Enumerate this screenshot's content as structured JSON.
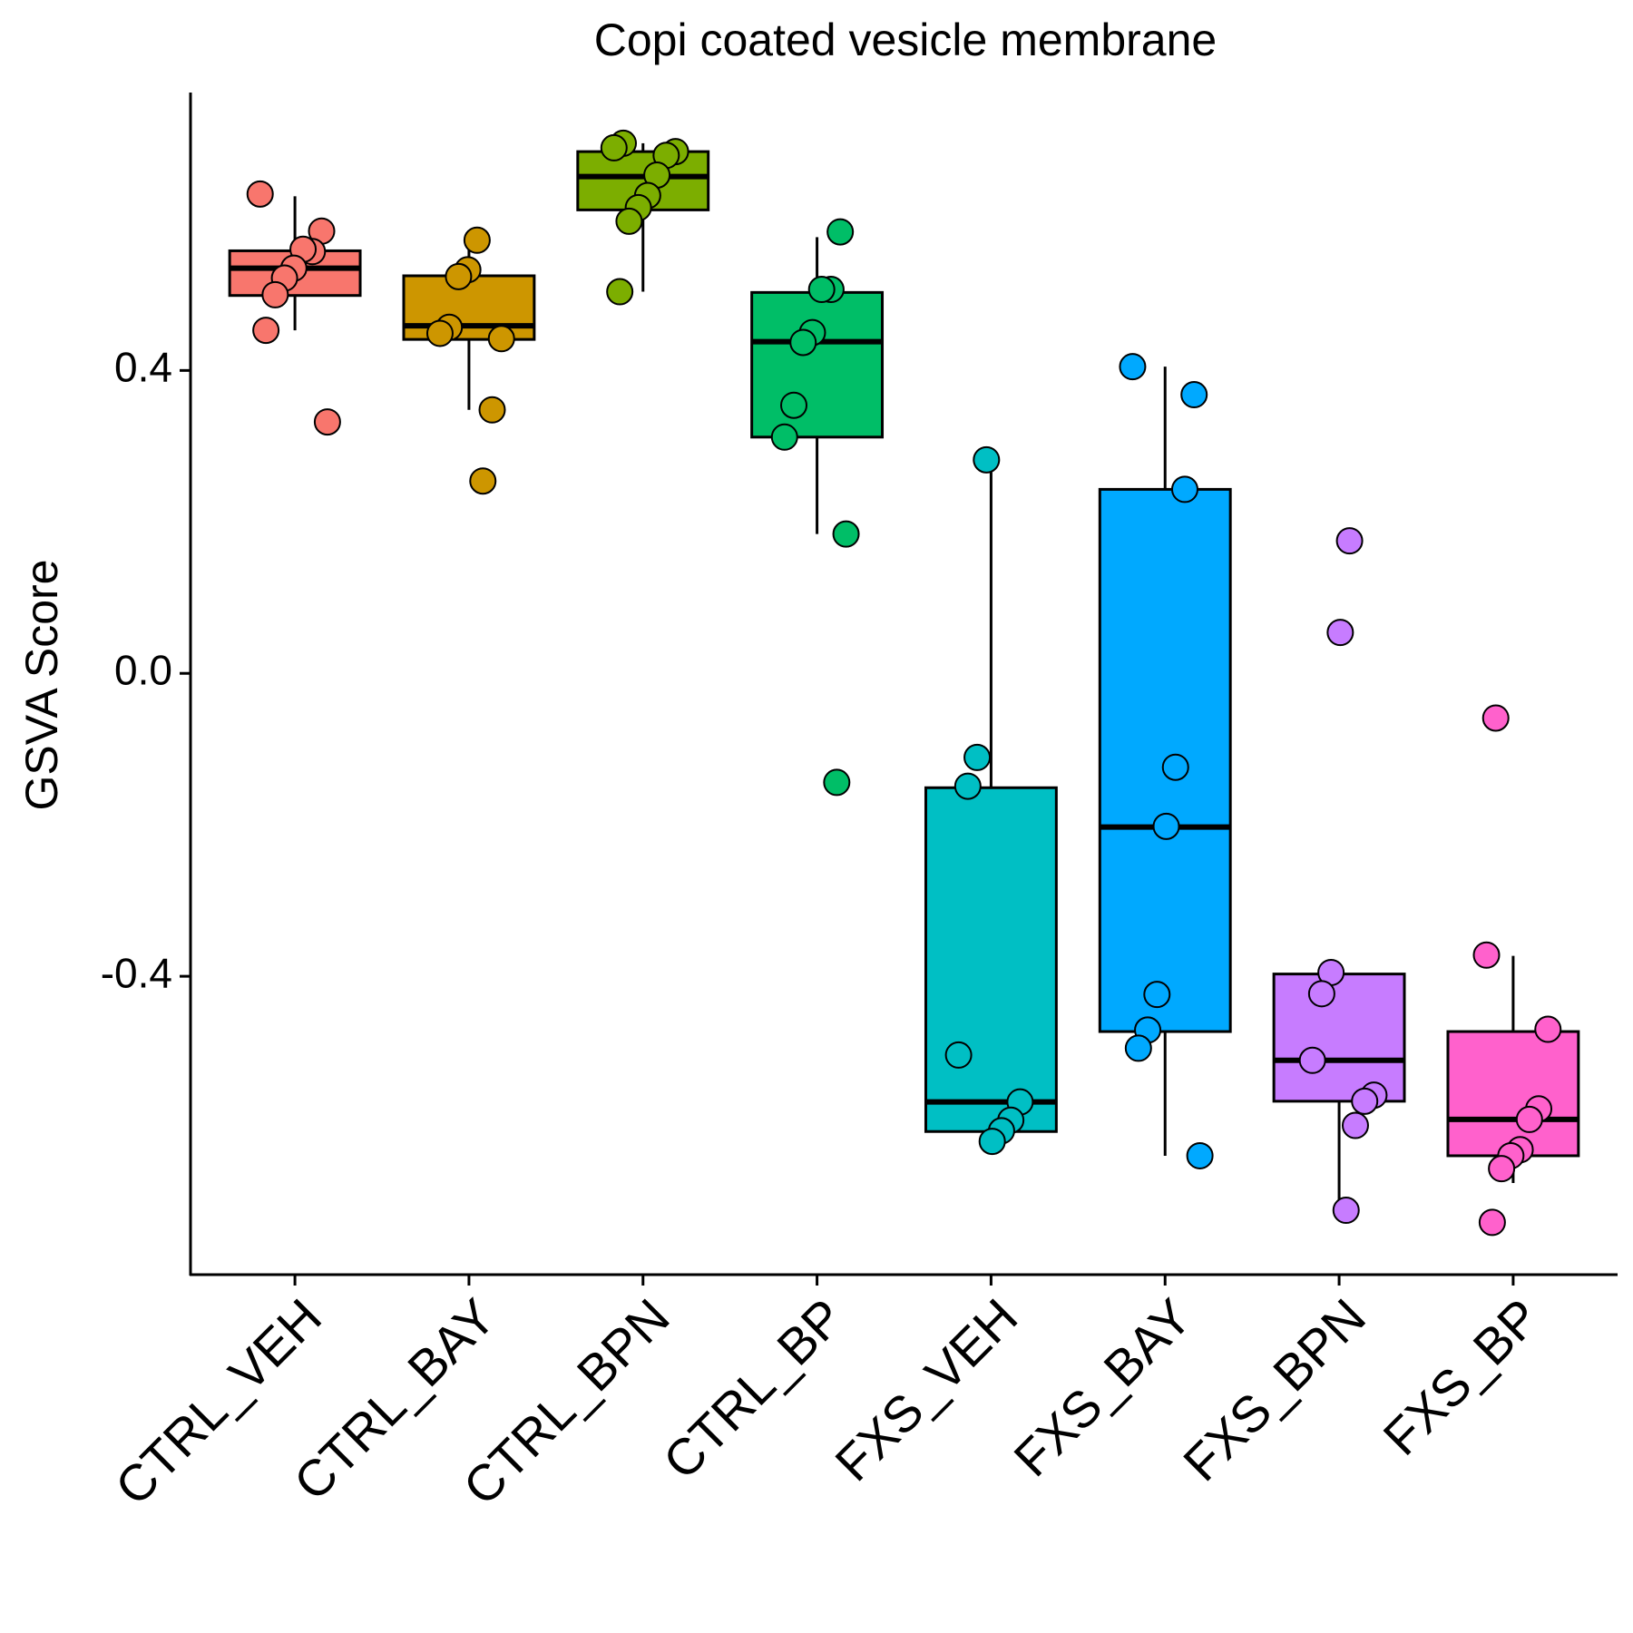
{
  "chart_data": {
    "type": "box",
    "title": "Copi coated vesicle membrane",
    "y_label": "GSVA Score",
    "categories": [
      "CTRL_VEH",
      "CTRL_BAY",
      "CTRL_BPN",
      "CTRL_BP",
      "FXS_VEH",
      "FXS_BAY",
      "FXS_BPN",
      "FXS_BP"
    ],
    "ylim": [
      -0.794,
      0.767
    ],
    "yticks": [
      -0.4,
      {
        "value": 0,
        "label": "0.0"
      },
      0.4
    ],
    "boxes": [
      {
        "color": "#F8766D",
        "whisker_low": 0.453,
        "q1": 0.499,
        "median": 0.535,
        "q3": 0.558,
        "whisker_high": 0.63,
        "points": [
          0.633,
          0.584,
          0.557,
          0.56,
          0.535,
          0.522,
          0.5,
          0.453,
          0.332
        ]
      },
      {
        "color": "#CD9600",
        "whisker_low": 0.348,
        "q1": 0.441,
        "median": 0.459,
        "q3": 0.525,
        "whisker_high": 0.568,
        "points": [
          0.572,
          0.533,
          0.524,
          0.457,
          0.449,
          0.442,
          0.348,
          0.254
        ]
      },
      {
        "color": "#7CAE00",
        "whisker_low": 0.504,
        "q1": 0.612,
        "median": 0.656,
        "q3": 0.689,
        "whisker_high": 0.7,
        "points": [
          0.7,
          0.694,
          0.689,
          0.684,
          0.658,
          0.631,
          0.615,
          0.597,
          0.504
        ]
      },
      {
        "color": "#00BE67",
        "whisker_low": 0.184,
        "q1": 0.312,
        "median": 0.438,
        "q3": 0.503,
        "whisker_high": 0.576,
        "points": [
          0.583,
          0.507,
          0.507,
          0.45,
          0.437,
          0.354,
          0.312,
          0.184,
          -0.144
        ]
      },
      {
        "color": "#00BFC4",
        "whisker_low": -0.618,
        "q1": -0.605,
        "median": -0.566,
        "q3": -0.151,
        "whisker_high": 0.282,
        "points": [
          0.282,
          -0.111,
          -0.149,
          -0.504,
          -0.566,
          -0.59,
          -0.604,
          -0.618
        ]
      },
      {
        "color": "#00A9FF",
        "whisker_low": -0.637,
        "q1": -0.473,
        "median": -0.203,
        "q3": 0.243,
        "whisker_high": 0.405,
        "points": [
          0.405,
          0.368,
          0.243,
          -0.124,
          -0.202,
          -0.424,
          -0.471,
          -0.495,
          -0.637
        ]
      },
      {
        "color": "#C77CFF",
        "whisker_low": -0.709,
        "q1": -0.565,
        "median": -0.511,
        "q3": -0.397,
        "whisker_high": -0.397,
        "points": [
          0.175,
          0.054,
          -0.395,
          -0.423,
          -0.511,
          -0.557,
          -0.565,
          -0.597,
          -0.709
        ]
      },
      {
        "color": "#FF61CC",
        "whisker_low": -0.673,
        "q1": -0.637,
        "median": -0.589,
        "q3": -0.473,
        "whisker_high": -0.373,
        "points": [
          -0.059,
          -0.372,
          -0.47,
          -0.575,
          -0.589,
          -0.629,
          -0.637,
          -0.654,
          -0.725
        ]
      }
    ]
  }
}
